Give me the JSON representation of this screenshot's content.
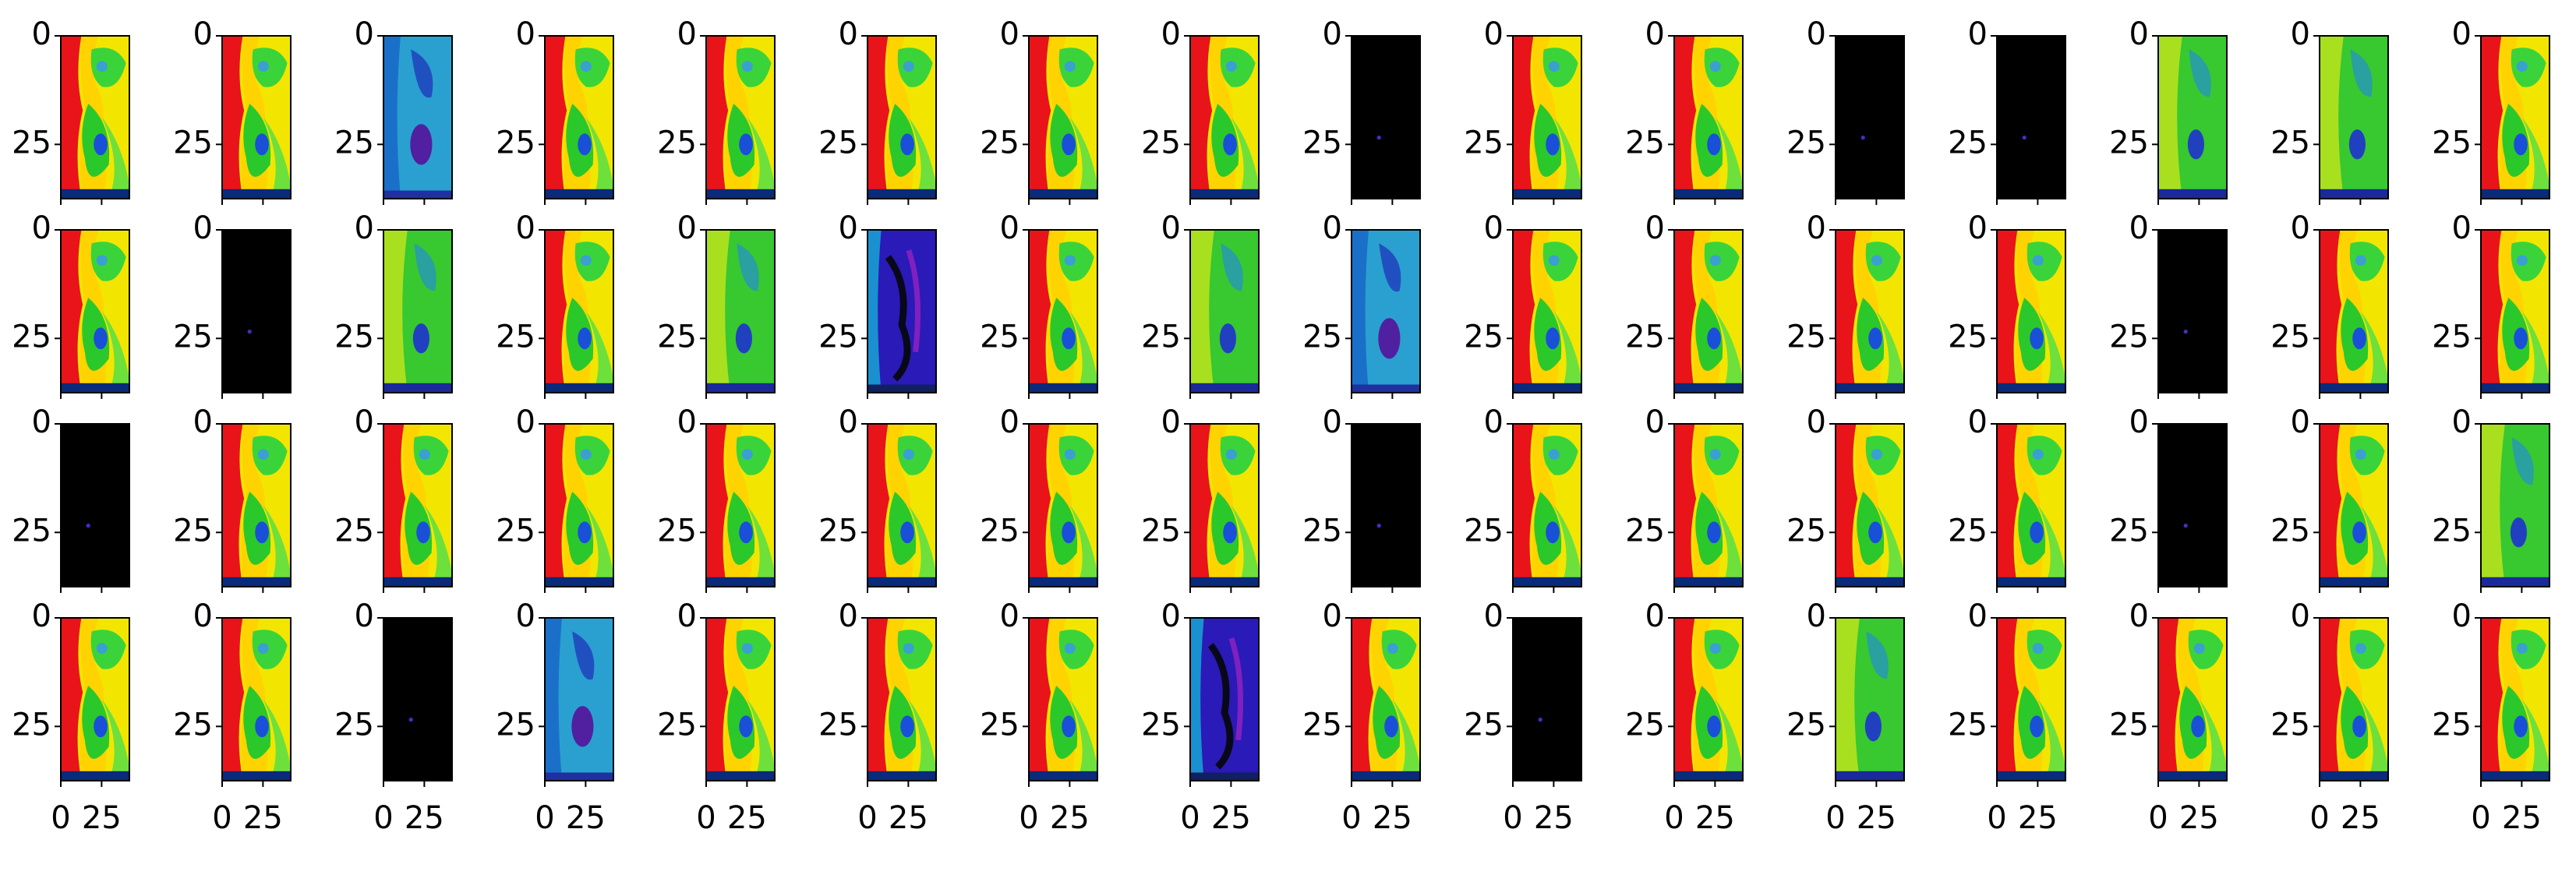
{
  "axes": {
    "xlim": [
      0,
      42
    ],
    "ylim": [
      0,
      37.5
    ],
    "xticks": [
      0,
      25
    ],
    "yticks": [
      0,
      25
    ]
  }
}
